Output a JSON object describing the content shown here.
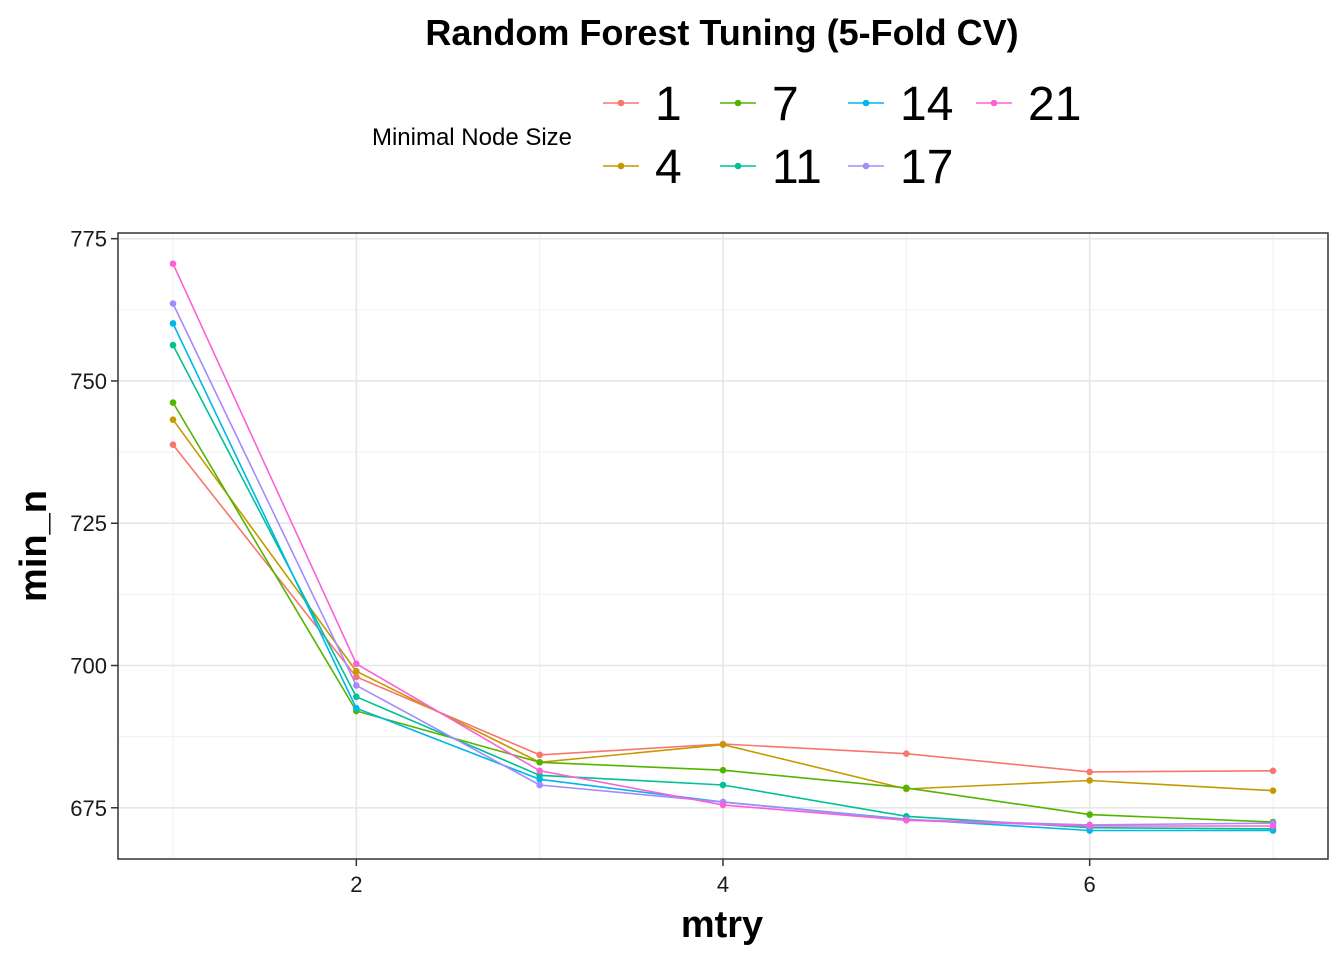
{
  "chart_data": {
    "type": "line",
    "title": "Random Forest Tuning (5-Fold CV)",
    "xlabel": "mtry",
    "ylabel": "min_n",
    "xlim": [
      0.7,
      7.3
    ],
    "ylim": [
      666,
      776
    ],
    "x_ticks": [
      2,
      4,
      6
    ],
    "y_ticks": [
      675,
      700,
      725,
      750,
      775
    ],
    "grid": true,
    "legend": {
      "title": "Minimal Node Size",
      "position": "top"
    },
    "x": [
      1,
      2,
      3,
      4,
      5,
      6,
      7
    ],
    "series": [
      {
        "name": "1",
        "color": "#F8766D",
        "values": [
          738.8,
          698.0,
          684.3,
          686.2,
          684.5,
          681.3,
          681.5
        ]
      },
      {
        "name": "4",
        "color": "#C49A00",
        "values": [
          743.2,
          699.0,
          683.0,
          686.1,
          678.3,
          679.8,
          678.0
        ]
      },
      {
        "name": "7",
        "color": "#53B400",
        "values": [
          746.2,
          692.0,
          683.0,
          681.6,
          678.5,
          673.8,
          672.5
        ]
      },
      {
        "name": "11",
        "color": "#00C094",
        "values": [
          756.3,
          694.5,
          680.7,
          679.0,
          673.5,
          671.5,
          671.3
        ]
      },
      {
        "name": "14",
        "color": "#00B6EB",
        "values": [
          760.1,
          692.5,
          680.0,
          676.0,
          673.0,
          671.0,
          671.0
        ]
      },
      {
        "name": "17",
        "color": "#A58AFF",
        "values": [
          763.6,
          696.5,
          679.0,
          676.0,
          672.9,
          672.0,
          672.3
        ]
      },
      {
        "name": "21",
        "color": "#FB61D7",
        "values": [
          770.6,
          700.3,
          681.5,
          675.5,
          672.8,
          671.8,
          671.8
        ]
      }
    ]
  }
}
